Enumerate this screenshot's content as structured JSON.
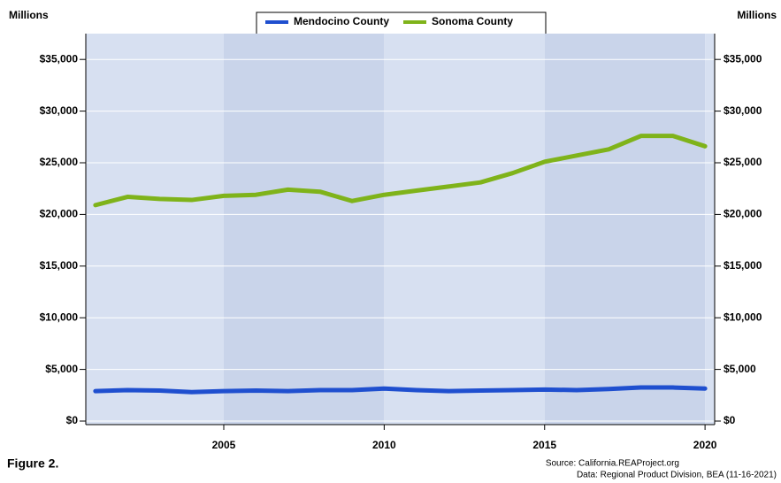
{
  "chart_data": {
    "type": "line",
    "ylabel": "Millions",
    "y2label": "Millions",
    "x": [
      2001,
      2002,
      2003,
      2004,
      2005,
      2006,
      2007,
      2008,
      2009,
      2010,
      2011,
      2012,
      2013,
      2014,
      2015,
      2016,
      2017,
      2018,
      2019,
      2020
    ],
    "series": [
      {
        "name": "Mendocino County",
        "color": "#1f4fcf",
        "values": [
          2900,
          3000,
          2950,
          2800,
          2900,
          2950,
          2900,
          3000,
          3000,
          3150,
          3000,
          2900,
          2950,
          3000,
          3050,
          3000,
          3100,
          3250,
          3250,
          3150
        ]
      },
      {
        "name": "Sonoma County",
        "color": "#7fb31a",
        "values": [
          20900,
          21700,
          21500,
          21400,
          21800,
          21900,
          22400,
          22200,
          21300,
          21900,
          22300,
          22700,
          23100,
          24000,
          25100,
          25700,
          26300,
          27600,
          27600,
          26600
        ]
      }
    ],
    "xlim": [
      2000.7,
      2020.3
    ],
    "xticks": [
      2005,
      2010,
      2015,
      2020
    ],
    "ylim": [
      0,
      37500
    ],
    "yticks": [
      {
        "value": 0,
        "label": "$0"
      },
      {
        "value": 5000,
        "label": "$5,000"
      },
      {
        "value": 10000,
        "label": "$10,000"
      },
      {
        "value": 15000,
        "label": "$15,000"
      },
      {
        "value": 20000,
        "label": "$20,000"
      },
      {
        "value": 25000,
        "label": "$25,000"
      },
      {
        "value": 30000,
        "label": "$30,000"
      },
      {
        "value": 35000,
        "label": "$35,000"
      }
    ],
    "grid": true,
    "figure_label": "Figure 2.",
    "source": "Source: California.REAProject.org",
    "data_note": "Data: Regional Product Division, BEA (11-16-2021)"
  }
}
